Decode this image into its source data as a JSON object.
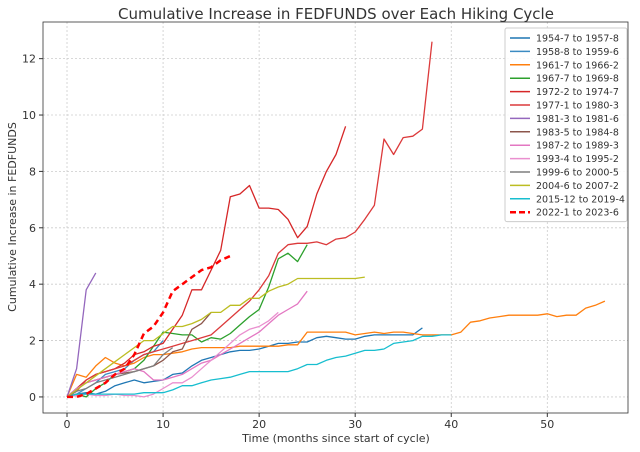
{
  "chart_data": {
    "type": "line",
    "title": "Cumulative Increase in FEDFUNDS over Each Hiking Cycle",
    "xlabel": "Time (months since start of cycle)",
    "ylabel": "Cumulative Increase in FEDFUNDS",
    "xlim": [
      -2.5,
      58.4
    ],
    "ylim": [
      -0.57,
      13.3
    ],
    "xticks": [
      0,
      10,
      20,
      30,
      40,
      50
    ],
    "yticks": [
      0,
      2,
      4,
      6,
      8,
      10,
      12
    ],
    "grid": true,
    "legend_position": "top-right",
    "series": [
      {
        "name": "1954-7 to 1957-8",
        "color": "#1f77b4",
        "dash": false,
        "values": [
          0,
          0.1,
          0.15,
          0.1,
          0.2,
          0.4,
          0.5,
          0.6,
          0.5,
          0.55,
          0.6,
          0.8,
          0.85,
          1.1,
          1.3,
          1.4,
          1.5,
          1.6,
          1.65,
          1.65,
          1.7,
          1.8,
          1.9,
          1.9,
          1.95,
          1.95,
          2.1,
          2.15,
          2.1,
          2.05,
          2.05,
          2.15,
          2.2,
          2.2,
          2.2,
          2.2,
          2.2,
          2.45
        ]
      },
      {
        "name": "1958-8 to 1959-6",
        "color": "#3b8bc2",
        "dash": false,
        "values": [
          0,
          0.1,
          0.3,
          0.5,
          0.8,
          0.9,
          1.0,
          1.3,
          1.5,
          1.6,
          2.0
        ]
      },
      {
        "name": "1961-7 to 1966-2",
        "color": "#ff7f0e",
        "dash": false,
        "values": [
          0,
          0.8,
          0.7,
          1.1,
          1.4,
          1.2,
          1.1,
          1.2,
          1.4,
          1.5,
          1.5,
          1.55,
          1.6,
          1.7,
          1.75,
          1.75,
          1.75,
          1.75,
          1.8,
          1.8,
          1.8,
          1.8,
          1.8,
          1.85,
          1.85,
          2.3,
          2.3,
          2.3,
          2.3,
          2.3,
          2.2,
          2.25,
          2.3,
          2.25,
          2.3,
          2.3,
          2.25,
          2.2,
          2.2,
          2.2,
          2.2,
          2.3,
          2.65,
          2.7,
          2.8,
          2.85,
          2.9,
          2.9,
          2.9,
          2.9,
          2.95,
          2.85,
          2.9,
          2.9,
          3.15,
          3.25,
          3.4
        ]
      },
      {
        "name": "1967-7 to 1969-8",
        "color": "#2ca02c",
        "dash": false,
        "values": [
          0,
          0.1,
          0,
          0.3,
          0.5,
          0.8,
          0.9,
          1.0,
          1.3,
          1.8,
          2.3,
          2.25,
          2.2,
          2.2,
          1.95,
          2.1,
          2.05,
          2.25,
          2.55,
          2.85,
          3.1,
          3.9,
          4.9,
          5.1,
          4.8,
          5.4
        ]
      },
      {
        "name": "1972-2 to 1974-7",
        "color": "#d62728",
        "dash": false,
        "values": [
          0,
          0.3,
          0.6,
          0.8,
          0.9,
          1.0,
          1.2,
          1.5,
          1.6,
          1.8,
          1.9,
          2.4,
          2.9,
          3.8,
          3.8,
          4.5,
          5.2,
          7.1,
          7.2,
          7.5,
          6.7,
          6.7,
          6.65,
          6.3,
          5.65,
          6.05,
          7.2,
          8.0,
          8.6,
          9.6
        ]
      },
      {
        "name": "1977-1 to 1980-3",
        "color": "#dc3a3b",
        "dash": false,
        "values": [
          0,
          0.2,
          0.6,
          0.8,
          0.9,
          1.0,
          1.1,
          1.3,
          1.5,
          1.6,
          1.7,
          1.8,
          1.9,
          2.0,
          2.1,
          2.2,
          2.5,
          2.8,
          3.1,
          3.4,
          3.8,
          4.3,
          5.1,
          5.4,
          5.45,
          5.45,
          5.5,
          5.4,
          5.6,
          5.65,
          5.85,
          6.3,
          6.8,
          9.15,
          8.6,
          9.2,
          9.25,
          9.5,
          12.6
        ]
      },
      {
        "name": "1981-3 to 1981-6",
        "color": "#9467bd",
        "dash": false,
        "values": [
          0,
          1.0,
          3.8,
          4.4
        ]
      },
      {
        "name": "1983-5 to 1984-8",
        "color": "#8c564b",
        "dash": false,
        "values": [
          0,
          0.3,
          0.5,
          0.6,
          0.7,
          0.8,
          0.85,
          0.9,
          1.0,
          1.1,
          1.3,
          1.6,
          1.7,
          2.4,
          2.6,
          3.0
        ]
      },
      {
        "name": "1987-2 to 1989-3",
        "color": "#e377c2",
        "dash": false,
        "values": [
          0,
          0.3,
          0.5,
          0.6,
          0.7,
          0.8,
          0.9,
          1.0,
          0.9,
          0.6,
          0.6,
          0.7,
          0.8,
          1.0,
          1.2,
          1.3,
          1.5,
          1.7,
          1.9,
          2.1,
          2.3,
          2.6,
          2.9,
          3.1,
          3.3,
          3.75
        ]
      },
      {
        "name": "1993-4 to 1995-2",
        "color": "#ea8fcf",
        "dash": false,
        "values": [
          0,
          0.05,
          0.1,
          0.05,
          0.05,
          0.1,
          0.05,
          0.05,
          0,
          0.1,
          0.3,
          0.5,
          0.5,
          0.7,
          1.0,
          1.3,
          1.6,
          1.9,
          2.2,
          2.4,
          2.5,
          2.7,
          3.0
        ]
      },
      {
        "name": "1999-6 to 2000-5",
        "color": "#7f7f7f",
        "dash": false,
        "values": [
          0,
          0.2,
          0.3,
          0.5,
          0.6,
          0.7,
          0.8,
          0.9,
          1.0,
          1.1,
          1.5,
          1.75
        ]
      },
      {
        "name": "2004-6 to 2007-2",
        "color": "#bcbd22",
        "dash": false,
        "values": [
          0,
          0.25,
          0.5,
          0.75,
          1.0,
          1.25,
          1.5,
          1.75,
          2.0,
          2.0,
          2.25,
          2.5,
          2.5,
          2.6,
          2.75,
          3.0,
          3.0,
          3.25,
          3.25,
          3.5,
          3.5,
          3.75,
          3.9,
          4.0,
          4.2,
          4.2,
          4.2,
          4.2,
          4.2,
          4.2,
          4.2,
          4.25
        ]
      },
      {
        "name": "2015-12 to 2019-4",
        "color": "#17becf",
        "dash": false,
        "values": [
          0,
          0.1,
          0.1,
          0.1,
          0.1,
          0.1,
          0.1,
          0.1,
          0.15,
          0.15,
          0.15,
          0.25,
          0.4,
          0.4,
          0.5,
          0.6,
          0.65,
          0.7,
          0.8,
          0.9,
          0.9,
          0.9,
          0.9,
          0.9,
          1.0,
          1.15,
          1.15,
          1.3,
          1.4,
          1.45,
          1.55,
          1.65,
          1.65,
          1.7,
          1.9,
          1.95,
          2.0,
          2.15,
          2.15,
          2.2,
          2.2
        ]
      },
      {
        "name": "2022-1 to 2023-6",
        "color": "#ff0000",
        "dash": true,
        "values": [
          0,
          0,
          0.1,
          0.3,
          0.5,
          0.8,
          1.0,
          1.5,
          2.25,
          2.5,
          3.0,
          3.75,
          4.0,
          4.25,
          4.5,
          4.6,
          4.85,
          5.0
        ]
      }
    ]
  }
}
